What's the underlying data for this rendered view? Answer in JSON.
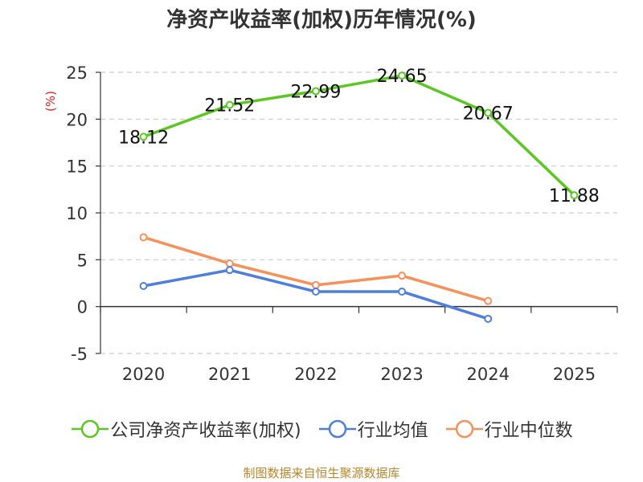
{
  "chart_data": {
    "type": "line",
    "title": "净资产收益率(加权)历年情况(%)",
    "ylabel": "(%)",
    "xlabel": "",
    "categories": [
      "2020",
      "2021",
      "2022",
      "2023",
      "2024",
      "2025"
    ],
    "ylim": [
      -5,
      25
    ],
    "yticks": [
      25,
      20,
      15,
      10,
      5,
      0,
      -5
    ],
    "grid": true,
    "legend_position": "bottom",
    "series": [
      {
        "name": "公司净资产收益率(加权)",
        "color": "#5cc723",
        "values": [
          18.12,
          21.52,
          22.99,
          24.65,
          20.67,
          11.88
        ],
        "labels": [
          "18.12",
          "21.52",
          "22.99",
          "24.65",
          "20.67",
          "11.88"
        ]
      },
      {
        "name": "行业均值",
        "color": "#4f7fdc",
        "values": [
          2.2,
          3.9,
          1.6,
          1.6,
          -1.3,
          null
        ]
      },
      {
        "name": "行业中位数",
        "color": "#f5915b",
        "values": [
          7.4,
          4.6,
          2.3,
          3.3,
          0.6,
          null
        ]
      }
    ]
  },
  "footer": {
    "source": "制图数据来自恒生聚源数据库"
  }
}
